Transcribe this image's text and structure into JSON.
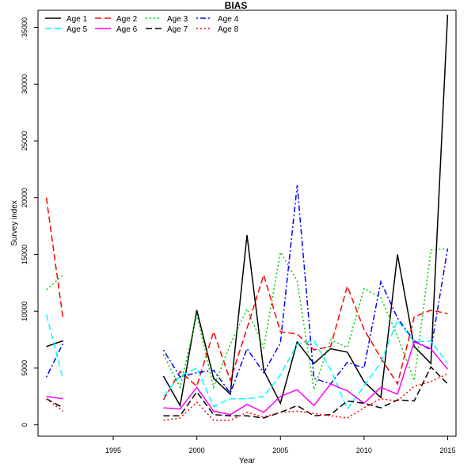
{
  "chart_data": {
    "type": "line",
    "title": "BIAS",
    "xlabel": "Year",
    "ylabel": "Survey index",
    "xlim": [
      1990.5,
      2015.5
    ],
    "ylim": [
      -1000,
      36500
    ],
    "x_ticks": [
      1995,
      2000,
      2005,
      2010,
      2015
    ],
    "y_ticks": [
      0,
      5000,
      10000,
      15000,
      20000,
      25000,
      30000,
      35000
    ],
    "grid": false,
    "legend_position": "top-left",
    "x": [
      1991,
      1992,
      1993,
      1994,
      1995,
      1996,
      1997,
      1998,
      1999,
      2000,
      2001,
      2002,
      2003,
      2004,
      2005,
      2006,
      2007,
      2008,
      2009,
      2010,
      2011,
      2012,
      2013,
      2014,
      2015
    ],
    "series": [
      {
        "name": "Age 1",
        "color": "#000000",
        "dash": "solid",
        "values": [
          6900,
          7400,
          null,
          null,
          null,
          null,
          null,
          4300,
          1700,
          10100,
          4100,
          2700,
          16700,
          4800,
          1900,
          7300,
          5400,
          6700,
          6400,
          3800,
          2400,
          15000,
          6900,
          5400,
          36100
        ]
      },
      {
        "name": "Age 2",
        "color": "#ff0000",
        "dash": "longdash",
        "values": [
          20000,
          9300,
          null,
          null,
          null,
          null,
          null,
          2200,
          4700,
          3400,
          8200,
          3900,
          8500,
          13200,
          8200,
          8000,
          6600,
          6900,
          12200,
          8400,
          5900,
          3600,
          9500,
          10100,
          9800
        ]
      },
      {
        "name": "Age 3",
        "color": "#00cc00",
        "dash": "dotted",
        "values": [
          11900,
          13200,
          null,
          null,
          null,
          null,
          null,
          6200,
          3300,
          9700,
          3300,
          7100,
          10200,
          6800,
          15200,
          12700,
          3100,
          7500,
          6800,
          12000,
          11200,
          7800,
          3900,
          15400,
          15500
        ]
      },
      {
        "name": "Age 4",
        "color": "#0000ff",
        "dash": "dotdash",
        "values": [
          4200,
          7200,
          null,
          null,
          null,
          null,
          null,
          6600,
          4200,
          4600,
          4800,
          2800,
          6700,
          4600,
          7200,
          21100,
          4100,
          3600,
          5500,
          5000,
          12600,
          9400,
          7400,
          6600,
          15500
        ]
      },
      {
        "name": "Age 5",
        "color": "#00ffff",
        "dash": "longdash",
        "values": [
          9700,
          4000,
          null,
          null,
          null,
          null,
          null,
          2500,
          4300,
          5000,
          1600,
          2300,
          2300,
          2500,
          4400,
          7100,
          7400,
          4900,
          1400,
          3400,
          5500,
          9200,
          7300,
          7400,
          5400
        ]
      },
      {
        "name": "Age 6",
        "color": "#ff00ff",
        "dash": "solid",
        "values": [
          2500,
          2300,
          null,
          null,
          null,
          null,
          null,
          1500,
          1400,
          3300,
          1200,
          900,
          1800,
          1100,
          2500,
          3100,
          1700,
          3600,
          3000,
          1900,
          3300,
          2700,
          7300,
          6700,
          4900
        ]
      },
      {
        "name": "Age 7",
        "color": "#000000",
        "dash": "longdash",
        "values": [
          2300,
          1500,
          null,
          null,
          null,
          null,
          null,
          800,
          800,
          2900,
          900,
          800,
          800,
          600,
          1100,
          1700,
          800,
          900,
          2100,
          1900,
          1500,
          2200,
          2100,
          5100,
          3600
        ]
      },
      {
        "name": "Age 8",
        "color": "#ff0000",
        "dash": "dotted",
        "values": [
          2300,
          1200,
          null,
          null,
          null,
          null,
          null,
          400,
          600,
          2000,
          400,
          400,
          1100,
          700,
          1100,
          1200,
          1000,
          800,
          600,
          1500,
          2300,
          2100,
          3400,
          3800,
          4500
        ]
      }
    ]
  }
}
